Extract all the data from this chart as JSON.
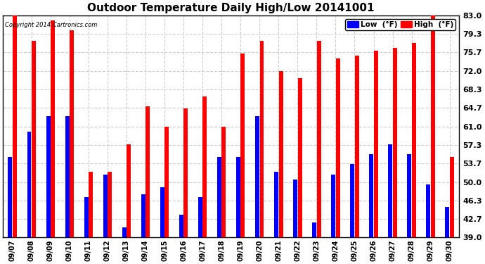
{
  "title": "Outdoor Temperature Daily High/Low 20141001",
  "copyright": "Copyright 2014 Cartronics.com",
  "dates": [
    "09/07",
    "09/08",
    "09/09",
    "09/10",
    "09/11",
    "09/12",
    "09/13",
    "09/14",
    "09/15",
    "09/16",
    "09/17",
    "09/18",
    "09/19",
    "09/20",
    "09/21",
    "09/22",
    "09/23",
    "09/24",
    "09/25",
    "09/26",
    "09/27",
    "09/28",
    "09/29",
    "09/30"
  ],
  "highs": [
    83.0,
    78.0,
    82.0,
    80.0,
    52.0,
    52.0,
    57.5,
    65.0,
    61.0,
    64.5,
    67.0,
    61.0,
    75.5,
    78.0,
    72.0,
    70.5,
    78.0,
    74.5,
    75.0,
    76.0,
    76.5,
    77.5,
    83.0,
    55.0
  ],
  "lows": [
    55.0,
    60.0,
    63.0,
    63.0,
    47.0,
    51.5,
    41.0,
    47.5,
    49.0,
    43.5,
    47.0,
    55.0,
    55.0,
    63.0,
    52.0,
    50.5,
    42.0,
    51.5,
    53.5,
    55.5,
    57.5,
    55.5,
    49.5,
    45.0
  ],
  "ylim_min": 39.0,
  "ylim_max": 83.0,
  "yticks": [
    39.0,
    42.7,
    46.3,
    50.0,
    53.7,
    57.3,
    61.0,
    64.7,
    68.3,
    72.0,
    75.7,
    79.3,
    83.0
  ],
  "bar_color_low": "#0000ff",
  "bar_color_high": "#ff0000",
  "bg_color": "#ffffff",
  "grid_color": "#cccccc",
  "title_fontsize": 11,
  "label_low": "Low  (°F)",
  "label_high": "High  (°F)"
}
